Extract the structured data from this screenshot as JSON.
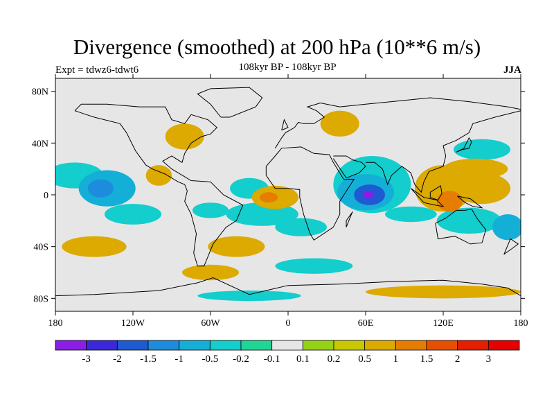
{
  "title": "Divergence (smoothed) at 200 hPa (10**6 m/s)",
  "subtitle": "108kyr BP - 108kyr BP",
  "left_label": "Expt = tdwz6-tdwt6",
  "right_label": "JJA",
  "map": {
    "projection": "cylindrical equidistant",
    "lon_range": [
      -180,
      180
    ],
    "lat_range": [
      -90,
      90
    ],
    "background_color": "#e6e6e6",
    "lat_ticks": [
      {
        "value": 80,
        "label": "80N"
      },
      {
        "value": 40,
        "label": "40N"
      },
      {
        "value": 0,
        "label": "0"
      },
      {
        "value": -40,
        "label": "40S"
      },
      {
        "value": -80,
        "label": "80S"
      }
    ],
    "lon_ticks": [
      {
        "value": -180,
        "label": "180"
      },
      {
        "value": -120,
        "label": "120W"
      },
      {
        "value": -60,
        "label": "60W"
      },
      {
        "value": 0,
        "label": "0"
      },
      {
        "value": 60,
        "label": "60E"
      },
      {
        "value": 120,
        "label": "120E"
      },
      {
        "value": 180,
        "label": "180"
      }
    ]
  },
  "colorbar": {
    "labels": [
      "-3",
      "-2",
      "-1.5",
      "-1",
      "-0.5",
      "-0.2",
      "-0.1",
      "0.1",
      "0.2",
      "0.5",
      "1",
      "1.5",
      "2",
      "3"
    ],
    "colors": [
      "#8a1ee6",
      "#3c28dc",
      "#1e5ad2",
      "#1e8cdc",
      "#14afd7",
      "#14cdcd",
      "#1ed796",
      "#e6e6e6",
      "#96d214",
      "#c8c800",
      "#dcaa00",
      "#e67d00",
      "#e65000",
      "#e61e00",
      "#e60000"
    ]
  },
  "chart_data": {
    "type": "heatmap",
    "variable": "Divergence (smoothed) at 200 hPa",
    "units": "10**6 m/s",
    "levels": [
      -3,
      -2,
      -1.5,
      -1,
      -0.5,
      -0.2,
      -0.1,
      0.1,
      0.2,
      0.5,
      1,
      1.5,
      2,
      3
    ],
    "features": [
      {
        "lon": 62,
        "lat": 0,
        "level": -3,
        "rx": 4,
        "ry": 3
      },
      {
        "lon": 63,
        "lat": 0,
        "level": -1.5,
        "rx": 12,
        "ry": 8
      },
      {
        "lon": 60,
        "lat": 2,
        "level": -0.5,
        "rx": 22,
        "ry": 14
      },
      {
        "lon": 65,
        "lat": 8,
        "level": -0.2,
        "rx": 30,
        "ry": 22
      },
      {
        "lon": -140,
        "lat": 5,
        "level": -0.5,
        "rx": 22,
        "ry": 14
      },
      {
        "lon": -145,
        "lat": 5,
        "level": -1,
        "rx": 10,
        "ry": 7
      },
      {
        "lon": -165,
        "lat": 15,
        "level": -0.2,
        "rx": 22,
        "ry": 10
      },
      {
        "lon": -120,
        "lat": -15,
        "level": -0.2,
        "rx": 22,
        "ry": 8
      },
      {
        "lon": -60,
        "lat": -12,
        "level": -0.2,
        "rx": 14,
        "ry": 6
      },
      {
        "lon": -10,
        "lat": -2,
        "level": 0.5,
        "rx": 18,
        "ry": 9
      },
      {
        "lon": -15,
        "lat": -2,
        "level": 1,
        "rx": 7,
        "ry": 4
      },
      {
        "lon": -20,
        "lat": -15,
        "level": -0.2,
        "rx": 28,
        "ry": 9
      },
      {
        "lon": 10,
        "lat": -25,
        "level": -0.2,
        "rx": 20,
        "ry": 7
      },
      {
        "lon": 120,
        "lat": 5,
        "level": 0.5,
        "rx": 22,
        "ry": 18
      },
      {
        "lon": 125,
        "lat": -5,
        "level": 1,
        "rx": 10,
        "ry": 8
      },
      {
        "lon": 150,
        "lat": 5,
        "level": 0.5,
        "rx": 22,
        "ry": 12
      },
      {
        "lon": 150,
        "lat": 35,
        "level": -0.2,
        "rx": 22,
        "ry": 8
      },
      {
        "lon": 145,
        "lat": 20,
        "level": 0.5,
        "rx": 25,
        "ry": 8
      },
      {
        "lon": 140,
        "lat": -20,
        "level": -0.2,
        "rx": 25,
        "ry": 10
      },
      {
        "lon": 170,
        "lat": -25,
        "level": -0.5,
        "rx": 12,
        "ry": 10
      },
      {
        "lon": 95,
        "lat": -15,
        "level": -0.2,
        "rx": 20,
        "ry": 6
      },
      {
        "lon": -80,
        "lat": 45,
        "level": 0.5,
        "rx": 15,
        "ry": 10
      },
      {
        "lon": -100,
        "lat": 15,
        "level": 0.5,
        "rx": 10,
        "ry": 8
      },
      {
        "lon": -30,
        "lat": 5,
        "level": -0.2,
        "rx": 15,
        "ry": 8
      },
      {
        "lon": 40,
        "lat": 55,
        "level": 0.5,
        "rx": 15,
        "ry": 10
      },
      {
        "lon": -150,
        "lat": -40,
        "level": 0.5,
        "rx": 25,
        "ry": 8
      },
      {
        "lon": -40,
        "lat": -40,
        "level": 0.5,
        "rx": 22,
        "ry": 8
      },
      {
        "lon": 20,
        "lat": -55,
        "level": -0.2,
        "rx": 30,
        "ry": 6
      },
      {
        "lon": -60,
        "lat": -60,
        "level": 0.5,
        "rx": 22,
        "ry": 6
      },
      {
        "lon": 120,
        "lat": -75,
        "level": 0.5,
        "rx": 60,
        "ry": 5
      },
      {
        "lon": -30,
        "lat": -78,
        "level": -0.2,
        "rx": 40,
        "ry": 4
      }
    ]
  }
}
